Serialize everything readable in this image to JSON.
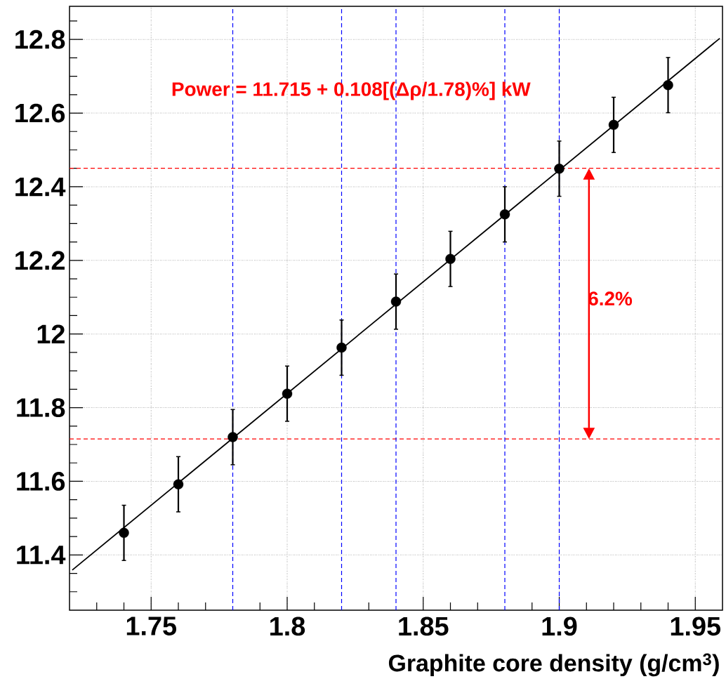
{
  "chart_data": {
    "type": "scatter",
    "xlabel": "Graphite core density (g/cm$^{3}$)",
    "x": [
      1.74,
      1.76,
      1.78,
      1.8,
      1.82,
      1.84,
      1.86,
      1.88,
      1.9,
      1.92,
      1.94
    ],
    "series": [
      {
        "color": "#000000",
        "values": [
          11.46,
          11.592,
          11.72,
          11.838,
          11.963,
          12.088,
          12.204,
          12.325,
          12.449,
          12.568,
          12.676
        ],
        "errors": [
          0.075,
          0.075,
          0.075,
          0.075,
          0.075,
          0.075,
          0.075,
          0.075,
          0.075,
          0.075,
          0.075
        ],
        "marker": "circle"
      },
      {
        "type": "line",
        "color": "#000000",
        "x": [
          1.721,
          1.959
        ],
        "values": [
          11.359,
          12.803
        ],
        "line_style": "solid",
        "marker": "none"
      }
    ],
    "xlim": [
      1.72,
      1.96
    ],
    "ylim": [
      11.25,
      12.89
    ],
    "xticks": [
      {
        "value": 1.73,
        "label": null
      },
      {
        "value": 1.74,
        "label": null
      },
      1.75,
      {
        "value": 1.76,
        "label": null
      },
      {
        "value": 1.77,
        "label": null
      },
      {
        "value": 1.79,
        "label": null
      },
      1.8,
      {
        "value": 1.81,
        "label": null
      },
      {
        "value": 1.83,
        "label": null
      },
      1.85,
      {
        "value": 1.86,
        "label": null
      },
      {
        "value": 1.87,
        "label": null
      },
      {
        "value": 1.89,
        "label": null
      },
      1.9,
      {
        "value": 1.91,
        "label": null
      },
      {
        "value": 1.92,
        "label": null
      },
      {
        "value": 1.93,
        "label": null
      },
      {
        "value": 1.94,
        "label": null
      },
      1.95
    ],
    "yticks": [
      {
        "value": 11.3,
        "label": null
      },
      {
        "value": 11.35,
        "label": null
      },
      11.4,
      {
        "value": 11.45,
        "label": null
      },
      {
        "value": 11.5,
        "label": null
      },
      {
        "value": 11.55,
        "label": null
      },
      11.6,
      {
        "value": 11.65,
        "label": null
      },
      {
        "value": 11.7,
        "label": null
      },
      {
        "value": 11.75,
        "label": null
      },
      11.8,
      {
        "value": 11.85,
        "label": null
      },
      {
        "value": 11.9,
        "label": null
      },
      {
        "value": 11.95,
        "label": null
      },
      12,
      {
        "value": 12.05,
        "label": null
      },
      {
        "value": 12.1,
        "label": null
      },
      {
        "value": 12.15,
        "label": null
      },
      12.2,
      {
        "value": 12.25,
        "label": null
      },
      {
        "value": 12.3,
        "label": null
      },
      {
        "value": 12.35,
        "label": null
      },
      12.4,
      {
        "value": 12.45,
        "label": null
      },
      {
        "value": 12.5,
        "label": null
      },
      {
        "value": 12.55,
        "label": null
      },
      12.6,
      {
        "value": 12.65,
        "label": null
      },
      {
        "value": 12.7,
        "label": null
      },
      {
        "value": 12.75,
        "label": null
      },
      12.8,
      {
        "value": 12.85,
        "label": null
      }
    ],
    "grid": true,
    "ref_lines": [
      {
        "axis": "y",
        "value": 12.45,
        "color": "#ff0000",
        "line_style": "dashed"
      },
      {
        "axis": "y",
        "value": 11.715,
        "color": "#ff0000",
        "line_style": "dashed"
      },
      {
        "axis": "x",
        "value": 1.78,
        "color": "#0000ff",
        "line_style": "dashed"
      },
      {
        "axis": "x",
        "value": 1.82,
        "color": "#0000ff",
        "line_style": "dashed"
      },
      {
        "axis": "x",
        "value": 1.84,
        "color": "#0000ff",
        "line_style": "dashed"
      },
      {
        "axis": "x",
        "value": 1.88,
        "color": "#0000ff",
        "line_style": "dashed"
      },
      {
        "axis": "x",
        "value": 1.9,
        "color": "#0000ff",
        "line_style": "dashed"
      }
    ],
    "annotations": [
      "Power = 11.715 + 0.108[(Δρ/1.78)%] kW",
      "6.2%"
    ]
  }
}
